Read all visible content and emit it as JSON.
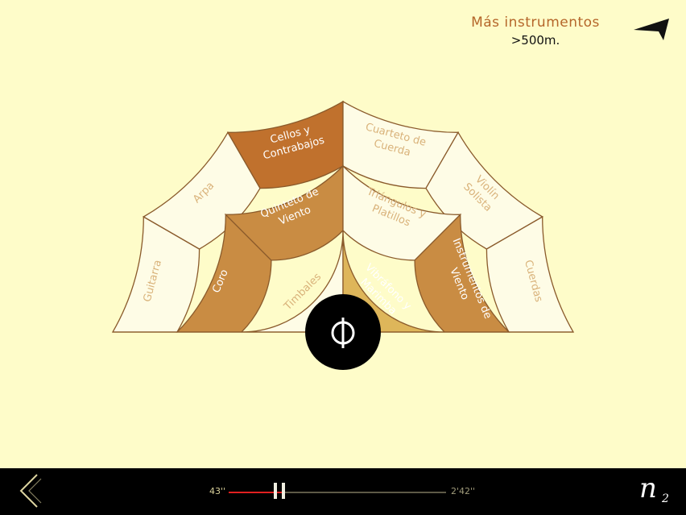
{
  "header": {
    "more_title": "Más instrumentos",
    "more_distance": ">500m."
  },
  "instruments": {
    "outer": [
      "Guitarra",
      "Arpa",
      "Cellos y Contrabajos",
      "Cuarteto de Cuerda",
      "Violín Solista",
      "Cuerdas"
    ],
    "middle": [
      "Coro",
      "Quinteto de Viento",
      "Triángulos y Platillos",
      "Instrumentos de Viento"
    ],
    "inner": [
      "Timbales",
      "Vibráfono y Marimba"
    ]
  },
  "colors": {
    "background": "#fefcc9",
    "cell_light": "#fefce6",
    "cell_dark": "#c0712d",
    "cell_medium": "#c98c43",
    "cell_gold": "#deb65a",
    "text_light": "#d9b27a",
    "stroke": "#8a5a2b"
  },
  "player": {
    "elapsed": "43''",
    "total": "2'42''",
    "progress": 0.26
  },
  "logo": {
    "letter": "n",
    "subscript": "2"
  },
  "icons": {
    "nav": "navigation-arrow-icon",
    "back": "chevron-left-icon",
    "pause": "pause-icon",
    "phi": "phi-icon"
  }
}
